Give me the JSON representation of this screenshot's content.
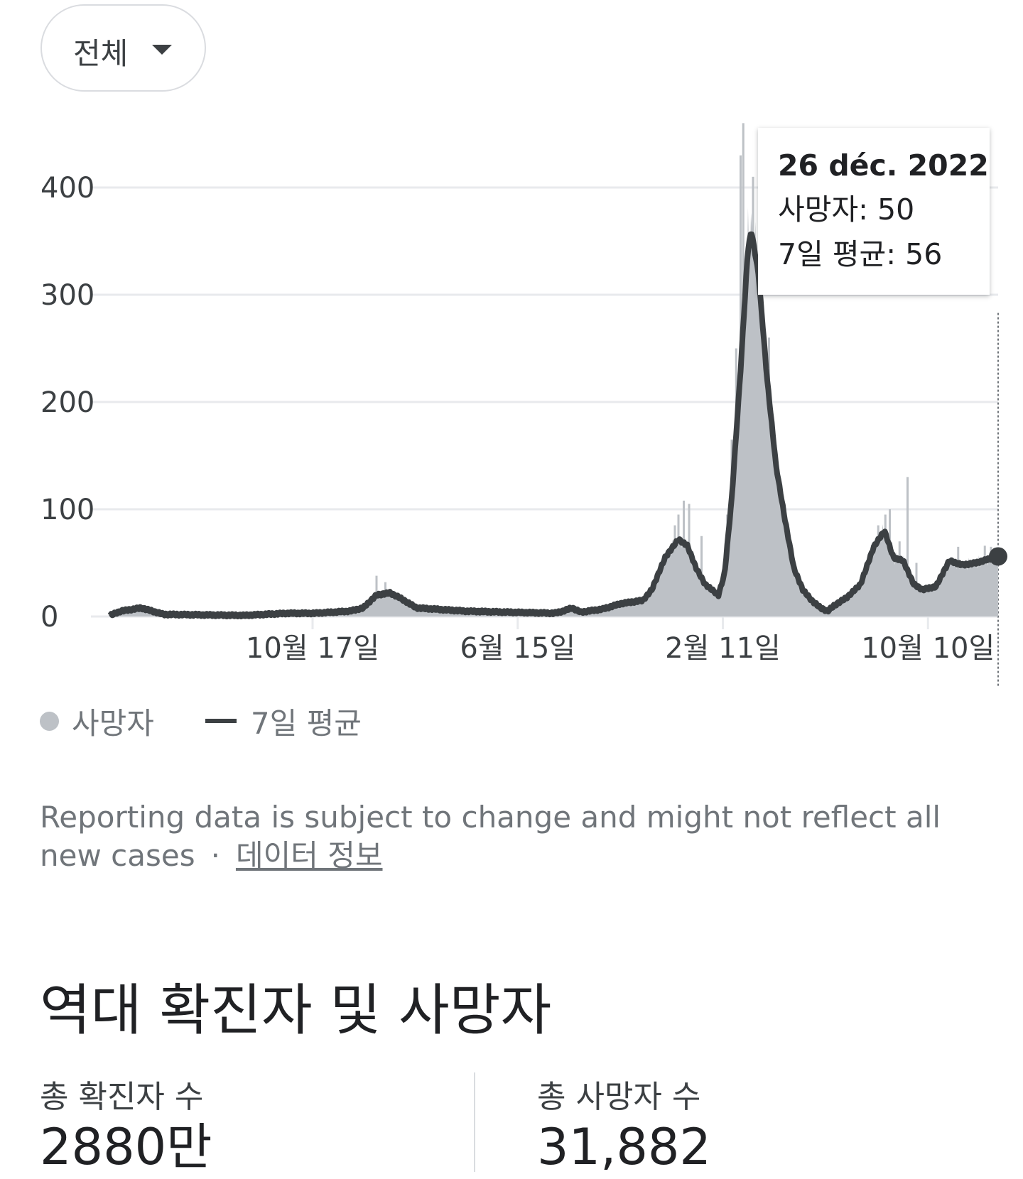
{
  "filter": {
    "label": "전체"
  },
  "tooltip": {
    "date": "26 déc. 2022",
    "deaths_text": "사망자: 50",
    "avg_text": "7일 평균: 56"
  },
  "legend": {
    "deaths": "사망자",
    "avg": "7일 평균"
  },
  "note": {
    "text": "Reporting data is subject to change and might not reflect all new cases",
    "separator": "·",
    "link": "데이터 정보"
  },
  "history": {
    "title": "역대 확진자 및 사망자",
    "total_cases_label": "총 확진자 수",
    "total_cases_value": "2880만",
    "total_deaths_label": "총 사망자 수",
    "total_deaths_value": "31,882"
  },
  "colors": {
    "bars": "#bdc1c6",
    "line": "#3c4043",
    "grid": "#e8eaed"
  },
  "chart_data": {
    "type": "bar",
    "ylim": [
      0,
      430
    ],
    "yticks": [
      "0",
      "100",
      "200",
      "300",
      "400"
    ],
    "xticks": [
      {
        "label": "10월 17일",
        "pos": 0.228
      },
      {
        "label": "6월 15일",
        "pos": 0.459
      },
      {
        "label": "2월 11일",
        "pos": 0.69
      },
      {
        "label": "10월 10일",
        "pos": 0.921
      }
    ],
    "series": [
      {
        "name": "사망자",
        "kind": "bar"
      },
      {
        "name": "7일 평균",
        "kind": "line"
      }
    ],
    "avg_curve": [
      [
        0.0,
        1
      ],
      [
        0.012,
        5
      ],
      [
        0.035,
        8
      ],
      [
        0.06,
        2
      ],
      [
        0.15,
        1
      ],
      [
        0.2,
        3
      ],
      [
        0.23,
        3
      ],
      [
        0.27,
        5
      ],
      [
        0.285,
        8
      ],
      [
        0.3,
        20
      ],
      [
        0.315,
        22
      ],
      [
        0.325,
        18
      ],
      [
        0.345,
        8
      ],
      [
        0.4,
        5
      ],
      [
        0.5,
        3
      ],
      [
        0.51,
        5
      ],
      [
        0.52,
        8
      ],
      [
        0.53,
        4
      ],
      [
        0.555,
        7
      ],
      [
        0.575,
        12
      ],
      [
        0.6,
        15
      ],
      [
        0.61,
        25
      ],
      [
        0.625,
        55
      ],
      [
        0.64,
        72
      ],
      [
        0.65,
        66
      ],
      [
        0.66,
        45
      ],
      [
        0.67,
        30
      ],
      [
        0.685,
        20
      ],
      [
        0.692,
        40
      ],
      [
        0.7,
        110
      ],
      [
        0.71,
        230
      ],
      [
        0.718,
        340
      ],
      [
        0.722,
        360
      ],
      [
        0.73,
        320
      ],
      [
        0.74,
        220
      ],
      [
        0.75,
        140
      ],
      [
        0.76,
        90
      ],
      [
        0.77,
        45
      ],
      [
        0.78,
        25
      ],
      [
        0.79,
        15
      ],
      [
        0.8,
        8
      ],
      [
        0.808,
        5
      ],
      [
        0.815,
        10
      ],
      [
        0.83,
        18
      ],
      [
        0.845,
        30
      ],
      [
        0.86,
        65
      ],
      [
        0.872,
        80
      ],
      [
        0.882,
        55
      ],
      [
        0.893,
        52
      ],
      [
        0.905,
        30
      ],
      [
        0.915,
        25
      ],
      [
        0.93,
        28
      ],
      [
        0.945,
        52
      ],
      [
        0.96,
        48
      ],
      [
        0.975,
        50
      ],
      [
        1.0,
        56
      ]
    ],
    "spikes": [
      [
        0.695,
        95
      ],
      [
        0.7,
        165
      ],
      [
        0.705,
        250
      ],
      [
        0.71,
        430
      ],
      [
        0.713,
        460
      ],
      [
        0.716,
        300
      ],
      [
        0.72,
        350
      ],
      [
        0.724,
        410
      ],
      [
        0.728,
        330
      ],
      [
        0.735,
        170
      ],
      [
        0.742,
        260
      ],
      [
        0.652,
        105
      ],
      [
        0.646,
        108
      ],
      [
        0.64,
        95
      ],
      [
        0.636,
        85
      ],
      [
        0.666,
        75
      ],
      [
        0.873,
        95
      ],
      [
        0.878,
        100
      ],
      [
        0.865,
        85
      ],
      [
        0.898,
        130
      ],
      [
        0.889,
        70
      ],
      [
        0.908,
        50
      ],
      [
        0.3,
        38
      ],
      [
        0.31,
        32
      ],
      [
        0.955,
        65
      ],
      [
        0.985,
        66
      ],
      [
        0.992,
        65
      ]
    ],
    "tooltip_point": {
      "pos": 1.0,
      "value": 56
    }
  }
}
